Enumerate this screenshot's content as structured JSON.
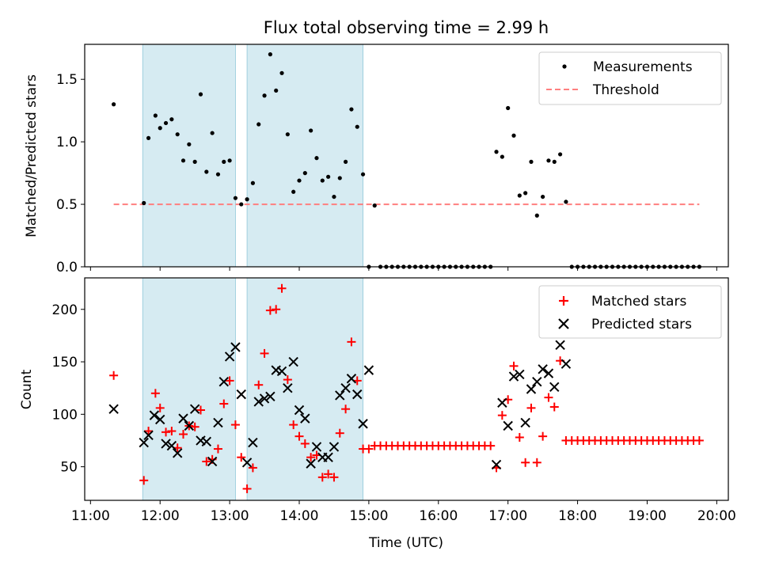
{
  "figure": {
    "title": "Flux total observing time = 2.99 h",
    "xlabel": "Time (UTC)"
  },
  "chart_data": [
    {
      "type": "scatter",
      "ylabel": "Matched/Predicted stars",
      "ylim": [
        0,
        1.78
      ],
      "xlim": [
        "10:55",
        "20:10"
      ],
      "yticks": [
        0.0,
        0.5,
        1.0,
        1.5
      ],
      "ytick_labels": [
        "0.0",
        "0.5",
        "1.0",
        "1.5"
      ],
      "grid": false,
      "legend_position": "top-right",
      "shaded_spans": [
        [
          "11:45",
          "13:05"
        ],
        [
          "13:15",
          "14:55"
        ]
      ],
      "series": [
        {
          "name": "Measurements",
          "marker": "dot",
          "color": "#000000",
          "x": [
            "11:20",
            "11:46",
            "11:50",
            "11:56",
            "12:00",
            "12:05",
            "12:10",
            "12:15",
            "12:20",
            "12:25",
            "12:30",
            "12:35",
            "12:40",
            "12:45",
            "12:50",
            "12:55",
            "13:00",
            "13:05",
            "13:10",
            "13:15",
            "13:20",
            "13:25",
            "13:30",
            "13:35",
            "13:40",
            "13:45",
            "13:50",
            "13:55",
            "14:00",
            "14:05",
            "14:10",
            "14:15",
            "14:20",
            "14:25",
            "14:30",
            "14:35",
            "14:40",
            "14:45",
            "14:50",
            "14:55",
            "15:00",
            "15:05",
            "15:10",
            "15:15",
            "15:20",
            "15:25",
            "15:30",
            "15:35",
            "15:40",
            "15:45",
            "15:50",
            "15:55",
            "16:00",
            "16:05",
            "16:10",
            "16:15",
            "16:20",
            "16:25",
            "16:30",
            "16:35",
            "16:40",
            "16:45",
            "16:50",
            "16:55",
            "17:00",
            "17:05",
            "17:10",
            "17:15",
            "17:20",
            "17:25",
            "17:30",
            "17:35",
            "17:40",
            "17:45",
            "17:50",
            "17:55",
            "18:00",
            "18:05",
            "18:10",
            "18:15",
            "18:20",
            "18:25",
            "18:30",
            "18:35",
            "18:40",
            "18:45",
            "18:50",
            "18:55",
            "19:00",
            "19:05",
            "19:10",
            "19:15",
            "19:20",
            "19:25",
            "19:30",
            "19:35",
            "19:40",
            "19:45"
          ],
          "y": [
            1.3,
            0.51,
            1.03,
            1.21,
            1.11,
            1.15,
            1.18,
            1.06,
            0.85,
            0.98,
            0.84,
            1.38,
            0.76,
            1.07,
            0.74,
            0.84,
            0.85,
            0.55,
            0.5,
            0.54,
            0.67,
            1.14,
            1.37,
            1.7,
            1.41,
            1.55,
            1.06,
            0.6,
            0.69,
            0.75,
            1.09,
            0.87,
            0.69,
            0.72,
            0.56,
            0.71,
            0.84,
            1.26,
            1.12,
            0.74,
            0.0,
            0.49,
            0.0,
            0.0,
            0.0,
            0.0,
            0.0,
            0.0,
            0.0,
            0.0,
            0.0,
            0.0,
            0.0,
            0.0,
            0.0,
            0.0,
            0.0,
            0.0,
            0.0,
            0.0,
            0.0,
            0.0,
            0.92,
            0.88,
            1.27,
            1.05,
            0.57,
            0.59,
            0.84,
            0.41,
            0.56,
            0.85,
            0.84,
            0.9,
            0.52,
            0.0,
            0.0,
            0.0,
            0.0,
            0.0,
            0.0,
            0.0,
            0.0,
            0.0,
            0.0,
            0.0,
            0.0,
            0.0,
            0.0,
            0.0,
            0.0,
            0.0,
            0.0,
            0.0,
            0.0,
            0.0,
            0.0,
            0.0
          ]
        },
        {
          "name": "Threshold",
          "line": "dashed",
          "color": "#ff7f7f",
          "x": [
            "11:20",
            "19:45"
          ],
          "y": [
            0.5,
            0.5
          ]
        }
      ]
    },
    {
      "type": "scatter",
      "ylabel": "Count",
      "ylim": [
        18,
        230
      ],
      "xlim": [
        "10:55",
        "20:10"
      ],
      "yticks": [
        50,
        100,
        150,
        200
      ],
      "ytick_labels": [
        "50",
        "100",
        "150",
        "200"
      ],
      "xtick_labels": [
        "11:00",
        "12:00",
        "13:00",
        "14:00",
        "15:00",
        "16:00",
        "17:00",
        "18:00",
        "19:00",
        "20:00"
      ],
      "grid": false,
      "legend_position": "top-right",
      "shaded_spans": [
        [
          "11:45",
          "13:05"
        ],
        [
          "13:15",
          "14:55"
        ]
      ],
      "series": [
        {
          "name": "Matched stars",
          "marker": "plus",
          "color": "#ff0000",
          "x": [
            "11:20",
            "11:46",
            "11:50",
            "11:56",
            "12:00",
            "12:05",
            "12:10",
            "12:15",
            "12:20",
            "12:25",
            "12:30",
            "12:35",
            "12:40",
            "12:45",
            "12:50",
            "12:55",
            "13:00",
            "13:05",
            "13:10",
            "13:15",
            "13:20",
            "13:25",
            "13:30",
            "13:35",
            "13:40",
            "13:45",
            "13:50",
            "13:55",
            "14:00",
            "14:05",
            "14:10",
            "14:15",
            "14:20",
            "14:25",
            "14:30",
            "14:35",
            "14:40",
            "14:45",
            "14:50",
            "14:55",
            "15:00",
            "15:05",
            "15:10",
            "15:15",
            "15:20",
            "15:25",
            "15:30",
            "15:35",
            "15:40",
            "15:45",
            "15:50",
            "15:55",
            "16:00",
            "16:05",
            "16:10",
            "16:15",
            "16:20",
            "16:25",
            "16:30",
            "16:35",
            "16:40",
            "16:45",
            "16:50",
            "16:55",
            "17:00",
            "17:05",
            "17:10",
            "17:15",
            "17:20",
            "17:25",
            "17:30",
            "17:35",
            "17:40",
            "17:45",
            "17:50",
            "17:55",
            "18:00",
            "18:05",
            "18:10",
            "18:15",
            "18:20",
            "18:25",
            "18:30",
            "18:35",
            "18:40",
            "18:45",
            "18:50",
            "18:55",
            "19:00",
            "19:05",
            "19:10",
            "19:15",
            "19:20",
            "19:25",
            "19:30",
            "19:35",
            "19:40",
            "19:45"
          ],
          "y": [
            137,
            37,
            84,
            120,
            106,
            83,
            84,
            68,
            81,
            89,
            88,
            104,
            55,
            57,
            67,
            110,
            132,
            90,
            59,
            29,
            49,
            128,
            158,
            199,
            200,
            220,
            133,
            90,
            79,
            72,
            59,
            61,
            40,
            43,
            40,
            82,
            105,
            169,
            132,
            67,
            67,
            70,
            70,
            70,
            70,
            70,
            70,
            70,
            70,
            70,
            70,
            70,
            70,
            70,
            70,
            70,
            70,
            70,
            70,
            70,
            70,
            70,
            49,
            99,
            114,
            146,
            78,
            54,
            106,
            54,
            79,
            116,
            107,
            151,
            75,
            75,
            75,
            75,
            75,
            75,
            75,
            75,
            75,
            75,
            75,
            75,
            75,
            75,
            75,
            75,
            75,
            75,
            75,
            75,
            75,
            75,
            75,
            75
          ]
        },
        {
          "name": "Predicted stars",
          "marker": "x",
          "color": "#000000",
          "x": [
            "11:20",
            "11:46",
            "11:50",
            "11:55",
            "12:00",
            "12:05",
            "12:10",
            "12:15",
            "12:20",
            "12:25",
            "12:30",
            "12:35",
            "12:40",
            "12:45",
            "12:50",
            "12:55",
            "13:00",
            "13:05",
            "13:10",
            "13:15",
            "13:20",
            "13:25",
            "13:30",
            "13:35",
            "13:40",
            "13:45",
            "13:50",
            "13:55",
            "14:00",
            "14:05",
            "14:10",
            "14:15",
            "14:20",
            "14:25",
            "14:30",
            "14:35",
            "14:40",
            "14:45",
            "14:50",
            "14:55",
            "15:00",
            "16:50",
            "16:55",
            "17:00",
            "17:05",
            "17:10",
            "17:15",
            "17:20",
            "17:25",
            "17:30",
            "17:35",
            "17:40",
            "17:45",
            "17:50"
          ],
          "y": [
            105,
            73,
            80,
            99,
            95,
            72,
            70,
            63,
            96,
            89,
            105,
            75,
            74,
            55,
            92,
            131,
            155,
            164,
            119,
            54,
            73,
            112,
            115,
            117,
            142,
            141,
            125,
            150,
            104,
            96,
            53,
            69,
            59,
            59,
            69,
            118,
            125,
            134,
            119,
            91,
            142,
            52,
            111,
            89,
            136,
            138,
            92,
            124,
            131,
            143,
            139,
            126,
            166,
            148
          ]
        }
      ]
    }
  ]
}
